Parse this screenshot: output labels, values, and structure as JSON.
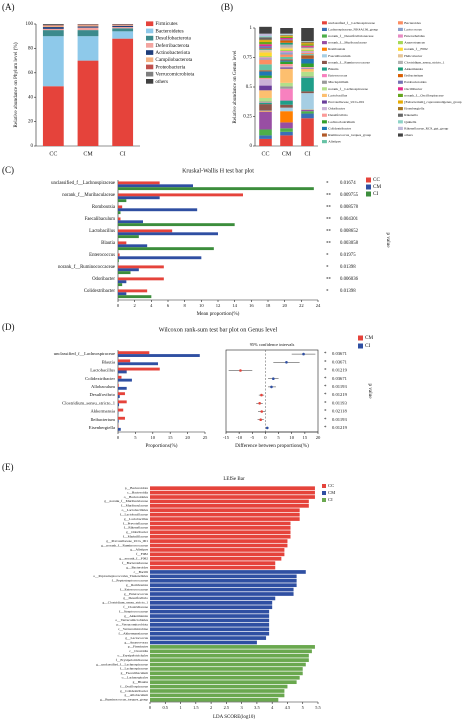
{
  "chart_data": [
    {
      "type": "stacked_bar",
      "panel": "(A)",
      "ylabel": "Relative abundance on Phylum level (%)",
      "categories": [
        "CC",
        "CM",
        "CI"
      ],
      "ylim": [
        0,
        100
      ],
      "yticks": [
        0,
        20,
        40,
        60,
        80,
        100
      ],
      "series": [
        {
          "name": "Firmicutes",
          "color": "#e5433b",
          "values": [
            49,
            70,
            88
          ]
        },
        {
          "name": "Bacteroidetes",
          "color": "#8ec9ea",
          "values": [
            41,
            20,
            6
          ]
        },
        {
          "name": "Desulfobacterota",
          "color": "#3c8a8c",
          "values": [
            5,
            5,
            2.5
          ]
        },
        {
          "name": "Deferribacterota",
          "color": "#f3a5a0",
          "values": [
            1,
            2,
            1
          ]
        },
        {
          "name": "Actinobacteriota",
          "color": "#1f3d7a",
          "values": [
            1.5,
            1,
            1
          ]
        },
        {
          "name": "Campilobacterota",
          "color": "#f4b183",
          "values": [
            1,
            1,
            0.5
          ]
        },
        {
          "name": "Proteobacteria",
          "color": "#c0504d",
          "values": [
            0.5,
            0.5,
            0.5
          ]
        },
        {
          "name": "Verrucomicrobiota",
          "color": "#7f7f7f",
          "values": [
            0.5,
            0.3,
            0.2
          ]
        },
        {
          "name": "others",
          "color": "#404040",
          "values": [
            0.5,
            0.2,
            0.3
          ]
        }
      ]
    },
    {
      "type": "stacked_bar",
      "panel": "(B)",
      "ylabel": "Relative abundance on Genus level",
      "categories": [
        "CC",
        "CM",
        "CI"
      ],
      "ylim": [
        0,
        1
      ],
      "yticks": [
        0,
        0.25,
        0.5,
        0.75,
        1
      ],
      "series": [
        {
          "name": "unclassified_f__Lachnospiraceae",
          "color": "#e5433b",
          "values": [
            0.06,
            0.09,
            0.235
          ]
        },
        {
          "name": "Lachnospiraceae_NK4A136_group",
          "color": "#3b6fb6",
          "values": [
            0.03,
            0.03,
            0.04
          ]
        },
        {
          "name": "norank_f__Desulfovibrionaceae",
          "color": "#4daf4a",
          "values": [
            0.05,
            0.03,
            0.02
          ]
        },
        {
          "name": "norank_f__Muribaculaceae",
          "color": "#984ea3",
          "values": [
            0.15,
            0.05,
            0.01
          ]
        },
        {
          "name": "Romboutsia",
          "color": "#ff7f00",
          "values": [
            0.005,
            0.095,
            0.003
          ]
        },
        {
          "name": "Faecalibaculum",
          "color": "#a6cee3",
          "values": [
            0.005,
            0.03,
            0.14
          ]
        },
        {
          "name": "norank_f__Ruminococcaceae",
          "color": "#8c564b",
          "values": [
            0.055,
            0.025,
            0.015
          ]
        },
        {
          "name": "Blautia",
          "color": "#1f9e89",
          "values": [
            0.01,
            0.035,
            0.115
          ]
        },
        {
          "name": "Enterococcus",
          "color": "#f781bf",
          "values": [
            0.002,
            0.1,
            0.001
          ]
        },
        {
          "name": "Mucispirillum",
          "color": "#999999",
          "values": [
            0.01,
            0.02,
            0.01
          ]
        },
        {
          "name": "norank_f__Lachnospiraceae",
          "color": "#b2df8a",
          "values": [
            0.03,
            0.03,
            0.04
          ]
        },
        {
          "name": "Lactobacillus",
          "color": "#fdbf6f",
          "values": [
            0.065,
            0.12,
            0.025
          ]
        },
        {
          "name": "Prevotellaceae_UCG-001",
          "color": "#6a3d9a",
          "values": [
            0.04,
            0.01,
            0.005
          ]
        },
        {
          "name": "Odoribacter",
          "color": "#cab2d6",
          "values": [
            0.055,
            0.01,
            0.005
          ]
        },
        {
          "name": "Desulfovibrio",
          "color": "#fb9a99",
          "values": [
            0.01,
            0.02,
            0.005
          ]
        },
        {
          "name": "Lachnoclostridium",
          "color": "#33a02c",
          "values": [
            0.02,
            0.02,
            0.03
          ]
        },
        {
          "name": "Colidextribacter",
          "color": "#1f78b4",
          "values": [
            0.035,
            0.01,
            0.04
          ]
        },
        {
          "name": "Ruminococcus_torques_group",
          "color": "#b15928",
          "values": [
            0.01,
            0.01,
            0.03
          ]
        },
        {
          "name": "Alistipes",
          "color": "#66c2a5",
          "values": [
            0.05,
            0.02,
            0.01
          ]
        },
        {
          "name": "Bacteroides",
          "color": "#fc8d62",
          "values": [
            0.04,
            0.02,
            0.01
          ]
        },
        {
          "name": "Lactococcus",
          "color": "#8da0cb",
          "values": [
            0.01,
            0.02,
            0.005
          ]
        },
        {
          "name": "Enterorhabdus",
          "color": "#e78ac3",
          "values": [
            0.01,
            0.01,
            0.01
          ]
        },
        {
          "name": "Anaerotruncus",
          "color": "#a6d854",
          "values": [
            0.01,
            0.01,
            0.01
          ]
        },
        {
          "name": "norank_f__F082",
          "color": "#ffd92f",
          "values": [
            0.03,
            0.01,
            0.005
          ]
        },
        {
          "name": "Helicobacter",
          "color": "#e5c494",
          "values": [
            0.02,
            0.01,
            0.01
          ]
        },
        {
          "name": "Clostridium_sensu_stricto_1",
          "color": "#b3b3b3",
          "values": [
            0.005,
            0.025,
            0.003
          ]
        },
        {
          "name": "Akkermansia",
          "color": "#1b9e77",
          "values": [
            0.005,
            0.015,
            0.001
          ]
        },
        {
          "name": "Ileibacterium",
          "color": "#d95f02",
          "values": [
            0.005,
            0.02,
            0.002
          ]
        },
        {
          "name": "Parabacteroides",
          "color": "#7570b3",
          "values": [
            0.02,
            0.01,
            0.005
          ]
        },
        {
          "name": "Oscillibacter",
          "color": "#e7298a",
          "values": [
            0.015,
            0.01,
            0.01
          ]
        },
        {
          "name": "norank_f__Oscillospiraceae",
          "color": "#66a61e",
          "values": [
            0.02,
            0.01,
            0.01
          ]
        },
        {
          "name": "[Eubacterium]_coprostanoligenes_group",
          "color": "#e6ab02",
          "values": [
            0.015,
            0.01,
            0.01
          ]
        },
        {
          "name": "Eisenbergiella",
          "color": "#a6761d",
          "values": [
            0.005,
            0.002,
            0.008
          ]
        },
        {
          "name": "Rikenella",
          "color": "#666666",
          "values": [
            0.02,
            0.005,
            0.005
          ]
        },
        {
          "name": "Quinella",
          "color": "#8dd3c7",
          "values": [
            0.01,
            0.005,
            0.003
          ]
        },
        {
          "name": "Rikenellaceae_RC9_gut_group",
          "color": "#bebada",
          "values": [
            0.02,
            0.005,
            0.003
          ]
        },
        {
          "name": "others",
          "color": "#404040",
          "values": [
            0.058,
            0.048,
            0.111
          ]
        }
      ]
    },
    {
      "type": "grouped_hbar",
      "panel": "(C)",
      "title": "Kruskal-Wallis H test bar plot",
      "xlabel": "Mean proportion(%)",
      "p_label": "p value",
      "categories": [
        "unclassified_f__Lachnospiraceae",
        "norank_f__Muribaculaceae",
        "Romboutsia",
        "Faecalibaculum",
        "Lactobacillus",
        "Blautia",
        "Enterococcus",
        "norank_f__Ruminococcaceae",
        "Odoribacter",
        "Colidextribacter"
      ],
      "xlim": [
        0,
        24
      ],
      "xticks": [
        0,
        2,
        4,
        6,
        8,
        10,
        12,
        14,
        16,
        18,
        20,
        22,
        24
      ],
      "series": [
        {
          "name": "CC",
          "color": "#e5433b",
          "values": [
            5,
            15,
            0.5,
            0.3,
            6.5,
            1,
            0.2,
            5.5,
            5.5,
            3.5
          ]
        },
        {
          "name": "CM",
          "color": "#2f4fa2",
          "values": [
            9,
            5,
            9.5,
            3,
            12,
            3.5,
            10,
            2.5,
            1,
            1
          ]
        },
        {
          "name": "CI",
          "color": "#3c8d3c",
          "values": [
            23.5,
            1,
            0.3,
            14,
            2.5,
            11.5,
            0.1,
            1.5,
            0.5,
            4
          ]
        }
      ],
      "significance": [
        "*",
        "**",
        "**",
        "**",
        "**",
        "**",
        "*",
        "*",
        "**",
        "*"
      ],
      "p_values": [
        0.01674,
        0.009755,
        0.008578,
        0.004301,
        0.008652,
        0.003058,
        0.01975,
        0.01398,
        0.006036,
        0.01398
      ]
    },
    {
      "type": "wilcoxon",
      "panel": "(D)",
      "title": "Wilcoxon rank-sum test bar plot on Genus level",
      "subtitle": "95% confidence intervals",
      "xlabel": "Proportions(%)",
      "diff_xlabel": "Difference between proportions(%)",
      "p_label": "p value",
      "categories": [
        "unclassified_f__Lachnospiraceae",
        "Blautia",
        "Lactobacillus",
        "Colidextribacter",
        "Allobaculum",
        "Desulfovibrio",
        "Clostridium_sensu_stricto_1",
        "Akkermansia",
        "Ileibacterium",
        "Eisenbergiella"
      ],
      "xlim": [
        0,
        25
      ],
      "xticks": [
        0,
        5,
        10,
        15,
        20,
        25
      ],
      "diff_xlim": [
        -15,
        20
      ],
      "diff_xticks": [
        -15,
        -10,
        -5,
        0,
        5,
        10,
        15,
        20
      ],
      "series": [
        {
          "name": "CM",
          "color": "#e5433b",
          "values": [
            9,
            3.5,
            12,
            1,
            0.2,
            2,
            2.5,
            1.5,
            2,
            0.1
          ]
        },
        {
          "name": "CI",
          "color": "#2f4fa2",
          "values": [
            23.5,
            11.5,
            2.5,
            4,
            2.5,
            0.5,
            0.3,
            0.1,
            0.2,
            0.8
          ]
        }
      ],
      "difference": [
        14.5,
        8,
        -9.5,
        3,
        2.3,
        -1.5,
        -2.2,
        -1.4,
        -1.8,
        0.7
      ],
      "ci_low": [
        10,
        3,
        -14,
        1,
        1,
        -2.5,
        -3.5,
        -2.8,
        -3,
        0.2
      ],
      "ci_high": [
        19,
        13,
        -5,
        5,
        4,
        -0.5,
        -1,
        0,
        -0.6,
        1.2
      ],
      "significance": [
        "*",
        "*",
        "*",
        "*",
        "*",
        "*",
        "*",
        "*",
        "*",
        "*"
      ],
      "p_values": [
        0.03671,
        0.03671,
        0.01219,
        0.03671,
        0.01193,
        0.01219,
        0.01193,
        0.02118,
        0.01193,
        0.01219
      ]
    },
    {
      "type": "lefse_bar",
      "panel": "(E)",
      "title": "LEfSe Bar",
      "xlabel": "LDA SCORE(log10)",
      "xlim": [
        0,
        5.5
      ],
      "xticks": [
        0,
        0.5,
        1,
        1.5,
        2,
        2.5,
        3,
        3.5,
        4,
        4.5,
        5,
        5.5
      ],
      "series": [
        {
          "name": "CC",
          "color": "#e5433b",
          "categories": [
            "p__Bacteroidota",
            "c__Bacteroidia",
            "o__Bacteroidales",
            "g__norank_f__Muribaculaceae",
            "f__Muribaculaceae",
            "o__Lactobacillales",
            "f__Lactobacillaceae",
            "g__Lactobacillus",
            "f__Prevotellaceae",
            "f__Rikenellaceae",
            "g__Odoribacter",
            "f__Marinifilaceae",
            "g__Prevotellaceae_UCG_001",
            "g__norank_f__Ruminococcaceae",
            "g__Alistipes",
            "f__F082",
            "g__norank_f__F082",
            "f__Bacteroidaceae",
            "g__Bacteroides"
          ],
          "values": [
            5.4,
            5.4,
            5.4,
            5.2,
            5.2,
            4.9,
            4.9,
            4.9,
            4.6,
            4.6,
            4.6,
            4.6,
            4.5,
            4.5,
            4.4,
            4.4,
            4.3,
            4.1,
            4.1
          ]
        },
        {
          "name": "CM",
          "color": "#2f4fa2",
          "categories": [
            "c__Bacilli",
            "o__Peptostreptococcales_Tissierellales",
            "f__Peptostreptococcaceae",
            "g__Romboutsia",
            "f__Enterococcaceae",
            "g__Enterococcus",
            "g__Desulfovibrio",
            "g__Clostridium_sensu_stricto_1",
            "f__Clostridiaceae",
            "f__Streptococcaceae",
            "g__Akkermansia",
            "o__Verrucomicrobiales",
            "p__Verrucomicrobiota",
            "c__Verrucomicrobiae",
            "f__Akkermansiaceae",
            "g__Lactococcus",
            "g__Anaerovorax"
          ],
          "values": [
            5.1,
            4.8,
            4.8,
            4.8,
            4.7,
            4.7,
            4.1,
            4.0,
            4.0,
            3.9,
            3.9,
            3.9,
            3.9,
            3.9,
            3.9,
            3.8,
            3.5
          ]
        },
        {
          "name": "CI",
          "color": "#6aa84f",
          "categories": [
            "p__Firmicutes",
            "c__Clostridia",
            "o__Erysipelotrichales",
            "f__Erysipelotrichaceae",
            "g__unclassified_f__Lachnospiraceae",
            "f__Lachnospiraceae",
            "g__Faecalibaculum",
            "o__Lachnospirales",
            "g__Blautia",
            "f__Oscillospiraceae",
            "g__Colidextribacter",
            "g__Allobaculum",
            "g__Ruminococcus_torques_group"
          ],
          "values": [
            5.4,
            5.3,
            5.2,
            5.2,
            5.1,
            5.0,
            5.0,
            4.9,
            4.8,
            4.5,
            4.4,
            4.4,
            4.2
          ]
        }
      ]
    }
  ]
}
